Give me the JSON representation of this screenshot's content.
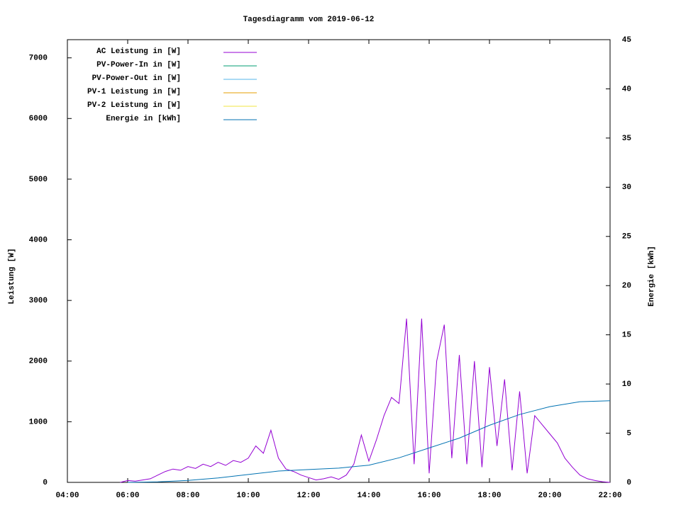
{
  "chart_data": {
    "type": "line",
    "title": "Tagesdiagramm vom 2019-06-12",
    "ylabel": "Leistung [W]",
    "y2label": "Energie [kWh]",
    "xlim": [
      4,
      22
    ],
    "xticks": [
      {
        "value": 4,
        "label": "04:00"
      },
      {
        "value": 6,
        "label": "06:00"
      },
      {
        "value": 8,
        "label": "08:00"
      },
      {
        "value": 10,
        "label": "10:00"
      },
      {
        "value": 12,
        "label": "12:00"
      },
      {
        "value": 14,
        "label": "14:00"
      },
      {
        "value": 16,
        "label": "16:00"
      },
      {
        "value": 18,
        "label": "18:00"
      },
      {
        "value": 20,
        "label": "20:00"
      },
      {
        "value": 22,
        "label": "22:00"
      }
    ],
    "ylim": [
      0,
      7300
    ],
    "yticks": [
      0,
      1000,
      2000,
      3000,
      4000,
      5000,
      6000,
      7000
    ],
    "y2lim": [
      0,
      45
    ],
    "y2ticks": [
      0,
      5,
      10,
      15,
      20,
      25,
      30,
      35,
      40,
      45
    ],
    "legend": "top-left",
    "series": [
      {
        "name": "AC Leistung in [W]",
        "color": "#9400d3",
        "x": [
          5.75,
          6,
          6.25,
          6.5,
          6.75,
          7,
          7.25,
          7.5,
          7.75,
          8,
          8.25,
          8.5,
          8.75,
          9,
          9.25,
          9.5,
          9.75,
          10,
          10.25,
          10.5,
          10.75,
          11,
          11.25,
          11.5,
          11.75,
          12,
          12.25,
          12.5,
          12.75,
          13,
          13.25,
          13.5,
          13.75,
          14,
          14.25,
          14.5,
          14.75,
          15,
          15.25,
          15.5,
          15.75,
          16,
          16.25,
          16.5,
          16.75,
          17,
          17.25,
          17.5,
          17.75,
          18,
          18.25,
          18.5,
          18.75,
          19,
          19.25,
          19.5,
          19.75,
          20,
          20.25,
          20.5,
          20.75,
          21,
          21.25,
          21.5,
          21.75,
          22
        ],
        "values": [
          0,
          30,
          20,
          40,
          60,
          120,
          180,
          220,
          200,
          260,
          230,
          300,
          260,
          330,
          280,
          360,
          330,
          400,
          600,
          480,
          860,
          400,
          220,
          180,
          120,
          80,
          40,
          60,
          90,
          50,
          120,
          300,
          780,
          350,
          700,
          1100,
          1400,
          1300,
          2700,
          300,
          2700,
          150,
          2000,
          2600,
          400,
          2100,
          300,
          2000,
          250,
          1900,
          600,
          1700,
          200,
          1500,
          150,
          1100,
          950,
          800,
          650,
          400,
          250,
          120,
          60,
          30,
          10,
          0
        ]
      },
      {
        "name": "PV-Power-In in [W]",
        "color": "#009e73"
      },
      {
        "name": "PV-Power-Out in [W]",
        "color": "#56b4e9"
      },
      {
        "name": "PV-1 Leistung in [W]",
        "color": "#e69f00"
      },
      {
        "name": "PV-2 Leistung in [W]",
        "color": "#f0e442"
      },
      {
        "name": "Energie in [kWh]",
        "color": "#0072b2",
        "axis": "y2",
        "x": [
          6,
          7,
          8,
          9,
          10,
          11,
          12,
          13,
          14,
          15,
          16,
          17,
          18,
          19,
          20,
          21,
          22
        ],
        "values": [
          0,
          0.05,
          0.2,
          0.45,
          0.8,
          1.15,
          1.3,
          1.45,
          1.75,
          2.5,
          3.5,
          4.5,
          5.8,
          6.9,
          7.7,
          8.2,
          8.3
        ]
      }
    ]
  }
}
